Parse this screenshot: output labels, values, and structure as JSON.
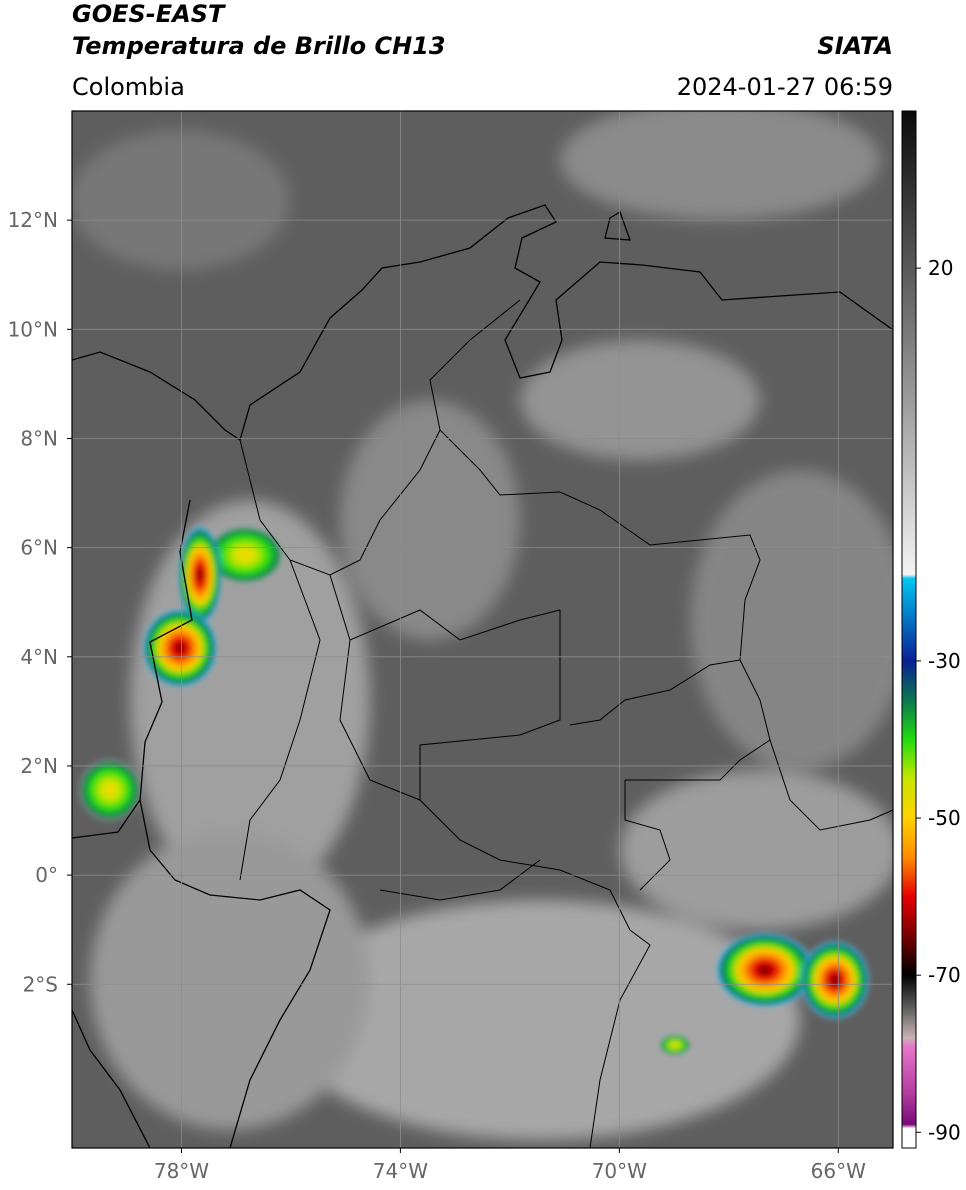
{
  "header": {
    "title": "GOES-EAST",
    "subtitle": "Temperatura de Brillo CH13",
    "source": "SIATA",
    "region": "Colombia",
    "timestamp": "2024-01-27 06:59"
  },
  "map": {
    "lon_range": [
      -80,
      -65
    ],
    "lat_range": [
      -5,
      14
    ],
    "grid": true,
    "lon_ticks": [
      {
        "value": -78,
        "label": "78°W"
      },
      {
        "value": -74,
        "label": "74°W"
      },
      {
        "value": -70,
        "label": "70°W"
      },
      {
        "value": -66,
        "label": "66°W"
      }
    ],
    "lat_ticks": [
      {
        "value": 12,
        "label": "12°N"
      },
      {
        "value": 10,
        "label": "10°N"
      },
      {
        "value": 8,
        "label": "8°N"
      },
      {
        "value": 6,
        "label": "6°N"
      },
      {
        "value": 4,
        "label": "4°N"
      },
      {
        "value": 2,
        "label": "2°N"
      },
      {
        "value": 0,
        "label": "0°"
      },
      {
        "value": -2,
        "label": "2°S"
      }
    ]
  },
  "colorbar": {
    "range": [
      -92,
      40
    ],
    "ticks": [
      20,
      -30,
      -50,
      -70,
      -90
    ],
    "stops": [
      {
        "value": 40,
        "color": "#0a0a0a"
      },
      {
        "value": -19,
        "color": "#f4f4f4"
      },
      {
        "value": -19.5,
        "color": "#00c8f0"
      },
      {
        "value": -30,
        "color": "#0a1e96"
      },
      {
        "value": -35,
        "color": "#0a7850"
      },
      {
        "value": -40,
        "color": "#20dc10"
      },
      {
        "value": -45,
        "color": "#c8e600"
      },
      {
        "value": -50,
        "color": "#ffd200"
      },
      {
        "value": -55,
        "color": "#ff8c00"
      },
      {
        "value": -60,
        "color": "#e60000"
      },
      {
        "value": -65,
        "color": "#780000"
      },
      {
        "value": -70,
        "color": "#000000"
      },
      {
        "value": -74,
        "color": "#5a5a5a"
      },
      {
        "value": -78,
        "color": "#c8b4b4"
      },
      {
        "value": -79,
        "color": "#e678c8"
      },
      {
        "value": -85,
        "color": "#b43ca0"
      },
      {
        "value": -89,
        "color": "#780a78"
      },
      {
        "value": -89.5,
        "color": "#ffffff"
      }
    ]
  }
}
